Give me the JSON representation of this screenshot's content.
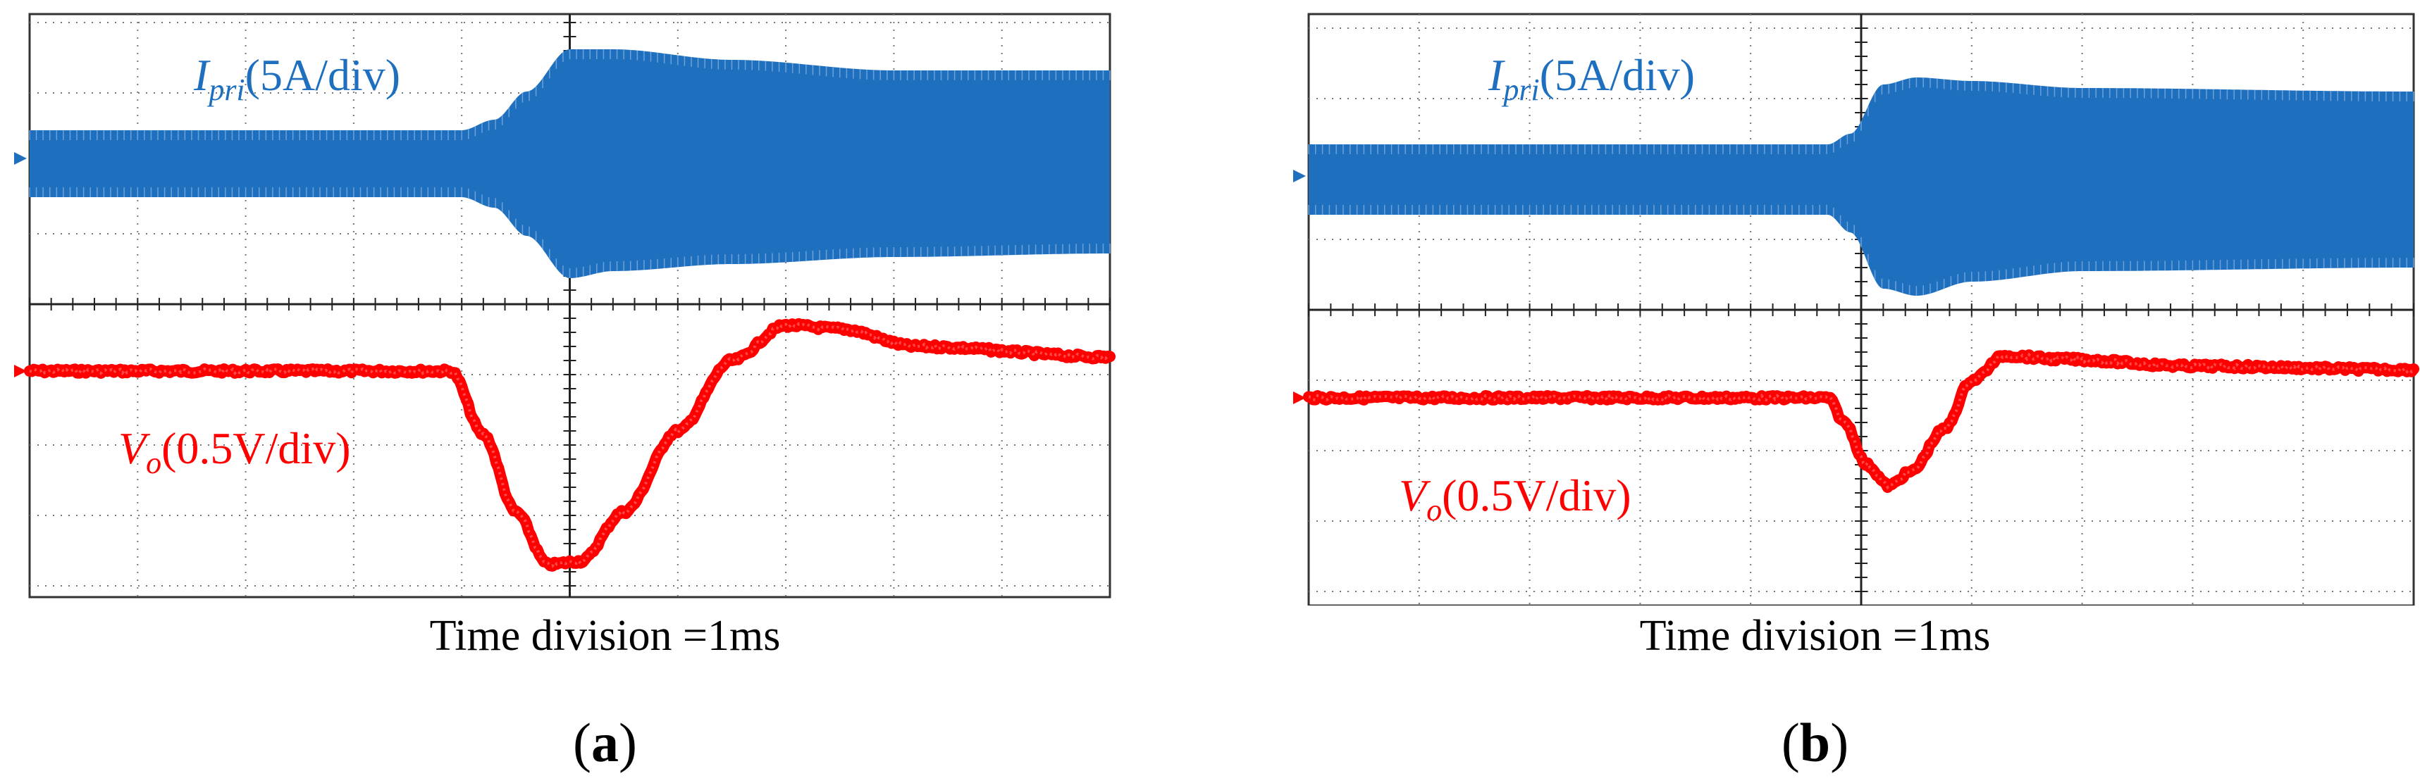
{
  "chart_data": [
    {
      "type": "line",
      "panel": "a",
      "grid": true,
      "xlabel": "Time division =1ms",
      "x_unit": "ms",
      "x_range": [
        0,
        10
      ],
      "series": [
        {
          "name": "Ipri(5A/div)",
          "label_symbol": "I",
          "label_subscript": "pri",
          "label_rest": "(5A/div)",
          "color": "#1f6fbf",
          "unit": "div",
          "kind": "envelope",
          "points": [
            {
              "t": 0.0,
              "upper": 0.4,
              "lower": -0.55
            },
            {
              "t": 4.0,
              "upper": 0.4,
              "lower": -0.55
            },
            {
              "t": 4.3,
              "upper": 0.55,
              "lower": -0.7
            },
            {
              "t": 4.6,
              "upper": 0.95,
              "lower": -1.1
            },
            {
              "t": 5.0,
              "upper": 1.55,
              "lower": -1.7
            },
            {
              "t": 5.4,
              "upper": 1.55,
              "lower": -1.6
            },
            {
              "t": 6.5,
              "upper": 1.4,
              "lower": -1.5
            },
            {
              "t": 8.0,
              "upper": 1.25,
              "lower": -1.4
            },
            {
              "t": 10.0,
              "upper": 1.25,
              "lower": -1.35
            }
          ]
        },
        {
          "name": "Vo(0.5V/div)",
          "label_symbol": "V",
          "label_subscript": "o",
          "label_rest": "(0.5V/div)",
          "color": "#ff0000",
          "unit": "div",
          "kind": "line",
          "points": [
            {
              "t": 0.0,
              "v": 0.0
            },
            {
              "t": 3.9,
              "v": 0.0
            },
            {
              "t": 4.2,
              "v": -0.9
            },
            {
              "t": 4.5,
              "v": -2.0
            },
            {
              "t": 4.8,
              "v": -2.75
            },
            {
              "t": 5.1,
              "v": -2.7
            },
            {
              "t": 5.5,
              "v": -2.0
            },
            {
              "t": 6.0,
              "v": -0.85
            },
            {
              "t": 6.5,
              "v": 0.15
            },
            {
              "t": 7.0,
              "v": 0.65
            },
            {
              "t": 7.5,
              "v": 0.6
            },
            {
              "t": 8.2,
              "v": 0.35
            },
            {
              "t": 10.0,
              "v": 0.2
            }
          ]
        }
      ]
    },
    {
      "type": "line",
      "panel": "b",
      "grid": true,
      "xlabel": "Time division =1ms",
      "x_unit": "ms",
      "x_range": [
        0,
        10
      ],
      "series": [
        {
          "name": "Ipri(5A/div)",
          "label_symbol": "I",
          "label_subscript": "pri",
          "label_rest": "(5A/div)",
          "color": "#1f6fbf",
          "unit": "div",
          "kind": "envelope",
          "points": [
            {
              "t": 0.0,
              "upper": 0.45,
              "lower": -0.55
            },
            {
              "t": 4.7,
              "upper": 0.45,
              "lower": -0.55
            },
            {
              "t": 4.9,
              "upper": 0.6,
              "lower": -0.8
            },
            {
              "t": 5.2,
              "upper": 1.3,
              "lower": -1.6
            },
            {
              "t": 5.5,
              "upper": 1.4,
              "lower": -1.7
            },
            {
              "t": 6.0,
              "upper": 1.35,
              "lower": -1.5
            },
            {
              "t": 7.0,
              "upper": 1.25,
              "lower": -1.35
            },
            {
              "t": 10.0,
              "upper": 1.2,
              "lower": -1.3
            }
          ]
        },
        {
          "name": "Vo(0.5V/div)",
          "label_symbol": "V",
          "label_subscript": "o",
          "label_rest": "(0.5V/div)",
          "color": "#ff0000",
          "unit": "div",
          "kind": "line",
          "points": [
            {
              "t": 0.0,
              "v": 0.0
            },
            {
              "t": 4.7,
              "v": 0.0
            },
            {
              "t": 4.85,
              "v": -0.35
            },
            {
              "t": 5.05,
              "v": -0.95
            },
            {
              "t": 5.25,
              "v": -1.25
            },
            {
              "t": 5.45,
              "v": -1.05
            },
            {
              "t": 5.75,
              "v": -0.45
            },
            {
              "t": 6.0,
              "v": 0.25
            },
            {
              "t": 6.3,
              "v": 0.6
            },
            {
              "t": 6.8,
              "v": 0.55
            },
            {
              "t": 8.0,
              "v": 0.45
            },
            {
              "t": 10.0,
              "v": 0.4
            }
          ]
        }
      ]
    }
  ],
  "panels": [
    {
      "time_label": "Time division =1ms",
      "label_open": "(",
      "label_letter": "a",
      "label_close": ")"
    },
    {
      "time_label": "Time division =1ms",
      "label_open": "(",
      "label_letter": "b",
      "label_close": ")"
    }
  ]
}
